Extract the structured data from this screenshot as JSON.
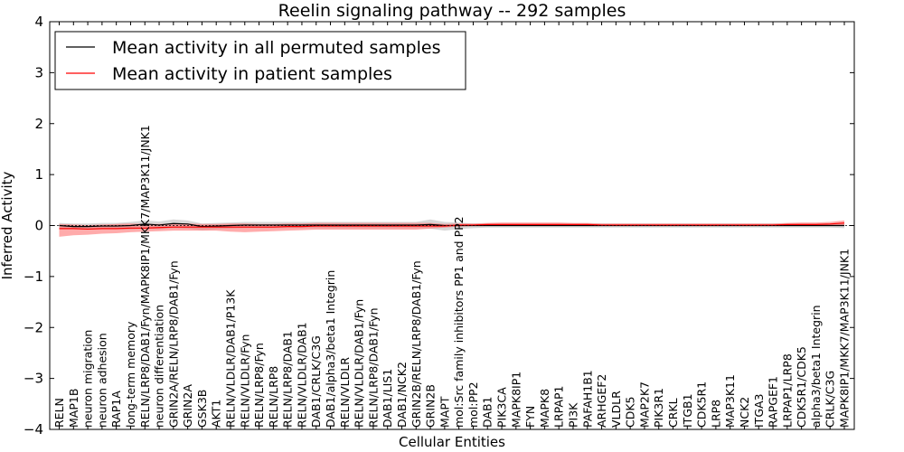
{
  "chart_data": {
    "type": "line",
    "title": "Reelin signaling pathway -- 292 samples",
    "xlabel": "Cellular Entities",
    "ylabel": "Inferred Activity",
    "ylim": [
      -4,
      4
    ],
    "yticks": [
      -4,
      -3,
      -2,
      -1,
      0,
      1,
      2,
      3,
      4
    ],
    "ytick_labels": [
      "−4",
      "−3",
      "−2",
      "−1",
      "0",
      "1",
      "2",
      "3",
      "4"
    ],
    "legend_position": "top-left",
    "categories": [
      "RELN",
      "MAP1B",
      "neuron migration",
      "neuron adhesion",
      "RAP1A",
      "long-term memory",
      "RELN/LRP8/DAB1/Fyn/MAPK8IP1/MKK7/MAP3K11/JNK1",
      "neuron differentiation",
      "GRIN2A/RELN/LRP8/DAB1/Fyn",
      "GRIN2A",
      "GSK3B",
      "AKT1",
      "RELN/VLDLR/DAB1/P13K",
      "RELN/VLDLR/Fyn",
      "RELN/LRP8/Fyn",
      "RELN/LRP8",
      "RELN/LRP8/DAB1",
      "RELN/VLDLR/DAB1",
      "DAB1/CRLK/C3G",
      "DAB1/alpha3/beta1 Integrin",
      "RELN/VLDLR",
      "RELN/VLDLR/DAB1/Fyn",
      "RELN/LRP8/DAB1/Fyn",
      "DAB1/LIS1",
      "DAB1/NCK2",
      "GRIN2B/RELN/LRP8/DAB1/Fyn",
      "GRIN2B",
      "MAPT",
      "mol:Src family inhibitors PP1 and PP2",
      "mol:PP2",
      "DAB1",
      "PIK3CA",
      "MAPK8IP1",
      "FYN",
      "MAPK8",
      "LRPAP1",
      "PI3K",
      "PAFAH1B1",
      "ARHGEF2",
      "VLDLR",
      "CDK5",
      "MAP2K7",
      "PIK3R1",
      "CRKL",
      "ITGB1",
      "CDK5R1",
      "LRP8",
      "MAP3K11",
      "NCK2",
      "ITGA3",
      "RAPGEF1",
      "LRPAP1/LRP8",
      "CDK5R1/CDK5",
      "alpha3/beta1 Integrin",
      "CRLK/C3G",
      "MAPK8IP1/MKK7/MAP3K11/JNK1"
    ],
    "series": [
      {
        "name": "Mean activity in all permuted samples",
        "color": "#000000",
        "values": [
          0.0,
          -0.02,
          -0.02,
          -0.01,
          -0.01,
          0.0,
          0.03,
          0.01,
          0.04,
          0.03,
          -0.02,
          -0.01,
          0.0,
          0.01,
          0.01,
          0.01,
          0.01,
          0.01,
          0.01,
          0.01,
          0.01,
          0.01,
          0.01,
          0.01,
          0.01,
          0.01,
          0.02,
          0.0,
          0.0,
          0.0,
          0.0,
          0.0,
          0.0,
          0.0,
          0.0,
          0.0,
          0.0,
          0.0,
          0.0,
          0.0,
          0.0,
          0.0,
          0.0,
          0.0,
          0.0,
          0.0,
          0.0,
          0.0,
          0.0,
          0.0,
          0.0,
          0.0,
          0.0,
          0.0,
          0.0,
          0.0
        ],
        "lower": [
          -0.05,
          -0.06,
          -0.07,
          -0.07,
          -0.07,
          -0.08,
          -0.06,
          -0.07,
          -0.05,
          -0.06,
          -0.09,
          -0.07,
          -0.06,
          -0.05,
          -0.05,
          -0.05,
          -0.05,
          -0.05,
          -0.05,
          -0.05,
          -0.05,
          -0.05,
          -0.05,
          -0.05,
          -0.05,
          -0.05,
          -0.06,
          -0.1,
          -0.07,
          -0.05,
          -0.04,
          -0.04,
          -0.04,
          -0.04,
          -0.04,
          -0.04,
          -0.04,
          -0.04,
          -0.04,
          -0.04,
          -0.04,
          -0.04,
          -0.04,
          -0.04,
          -0.04,
          -0.04,
          -0.04,
          -0.04,
          -0.04,
          -0.04,
          -0.04,
          -0.04,
          -0.04,
          -0.04,
          -0.04,
          -0.05
        ],
        "upper": [
          0.05,
          0.04,
          0.04,
          0.05,
          0.05,
          0.07,
          0.1,
          0.08,
          0.12,
          0.1,
          0.04,
          0.05,
          0.06,
          0.07,
          0.07,
          0.07,
          0.07,
          0.07,
          0.07,
          0.07,
          0.07,
          0.07,
          0.07,
          0.07,
          0.07,
          0.07,
          0.12,
          0.07,
          0.06,
          0.04,
          0.04,
          0.04,
          0.04,
          0.04,
          0.04,
          0.04,
          0.04,
          0.04,
          0.04,
          0.04,
          0.04,
          0.04,
          0.04,
          0.04,
          0.04,
          0.04,
          0.04,
          0.04,
          0.04,
          0.04,
          0.04,
          0.04,
          0.04,
          0.04,
          0.04,
          0.05
        ]
      },
      {
        "name": "Mean activity in patient samples",
        "color": "#ff0000",
        "values": [
          -0.06,
          -0.06,
          -0.07,
          -0.06,
          -0.06,
          -0.05,
          -0.05,
          -0.04,
          -0.03,
          -0.03,
          -0.03,
          -0.03,
          -0.03,
          -0.03,
          -0.03,
          -0.03,
          -0.02,
          -0.02,
          -0.01,
          -0.01,
          -0.01,
          -0.01,
          -0.01,
          -0.01,
          -0.01,
          -0.01,
          -0.01,
          -0.01,
          0.01,
          0.01,
          0.02,
          0.02,
          0.02,
          0.02,
          0.02,
          0.02,
          0.02,
          0.02,
          0.01,
          0.01,
          0.01,
          0.01,
          0.01,
          0.01,
          0.01,
          0.01,
          0.01,
          0.01,
          0.01,
          0.01,
          0.01,
          0.02,
          0.02,
          0.02,
          0.03,
          0.05
        ],
        "lower": [
          -0.22,
          -0.19,
          -0.18,
          -0.16,
          -0.15,
          -0.13,
          -0.12,
          -0.11,
          -0.1,
          -0.1,
          -0.1,
          -0.1,
          -0.12,
          -0.13,
          -0.12,
          -0.11,
          -0.1,
          -0.09,
          -0.08,
          -0.08,
          -0.08,
          -0.08,
          -0.08,
          -0.08,
          -0.08,
          -0.08,
          -0.06,
          -0.04,
          -0.02,
          -0.01,
          -0.01,
          -0.01,
          -0.01,
          -0.01,
          -0.01,
          -0.01,
          -0.01,
          -0.01,
          -0.01,
          -0.01,
          -0.01,
          -0.01,
          -0.01,
          -0.01,
          -0.01,
          -0.01,
          -0.01,
          -0.01,
          -0.01,
          -0.01,
          -0.01,
          -0.01,
          -0.01,
          -0.01,
          -0.01,
          0.0
        ],
        "upper": [
          0.03,
          0.02,
          0.01,
          0.02,
          0.03,
          0.04,
          0.03,
          0.03,
          0.04,
          0.04,
          0.03,
          0.03,
          0.04,
          0.04,
          0.03,
          0.03,
          0.04,
          0.04,
          0.05,
          0.05,
          0.05,
          0.05,
          0.05,
          0.05,
          0.05,
          0.05,
          0.05,
          0.03,
          0.04,
          0.04,
          0.05,
          0.06,
          0.06,
          0.06,
          0.06,
          0.06,
          0.05,
          0.05,
          0.04,
          0.04,
          0.04,
          0.04,
          0.04,
          0.04,
          0.04,
          0.04,
          0.04,
          0.04,
          0.04,
          0.04,
          0.04,
          0.05,
          0.06,
          0.06,
          0.07,
          0.1
        ]
      }
    ]
  }
}
